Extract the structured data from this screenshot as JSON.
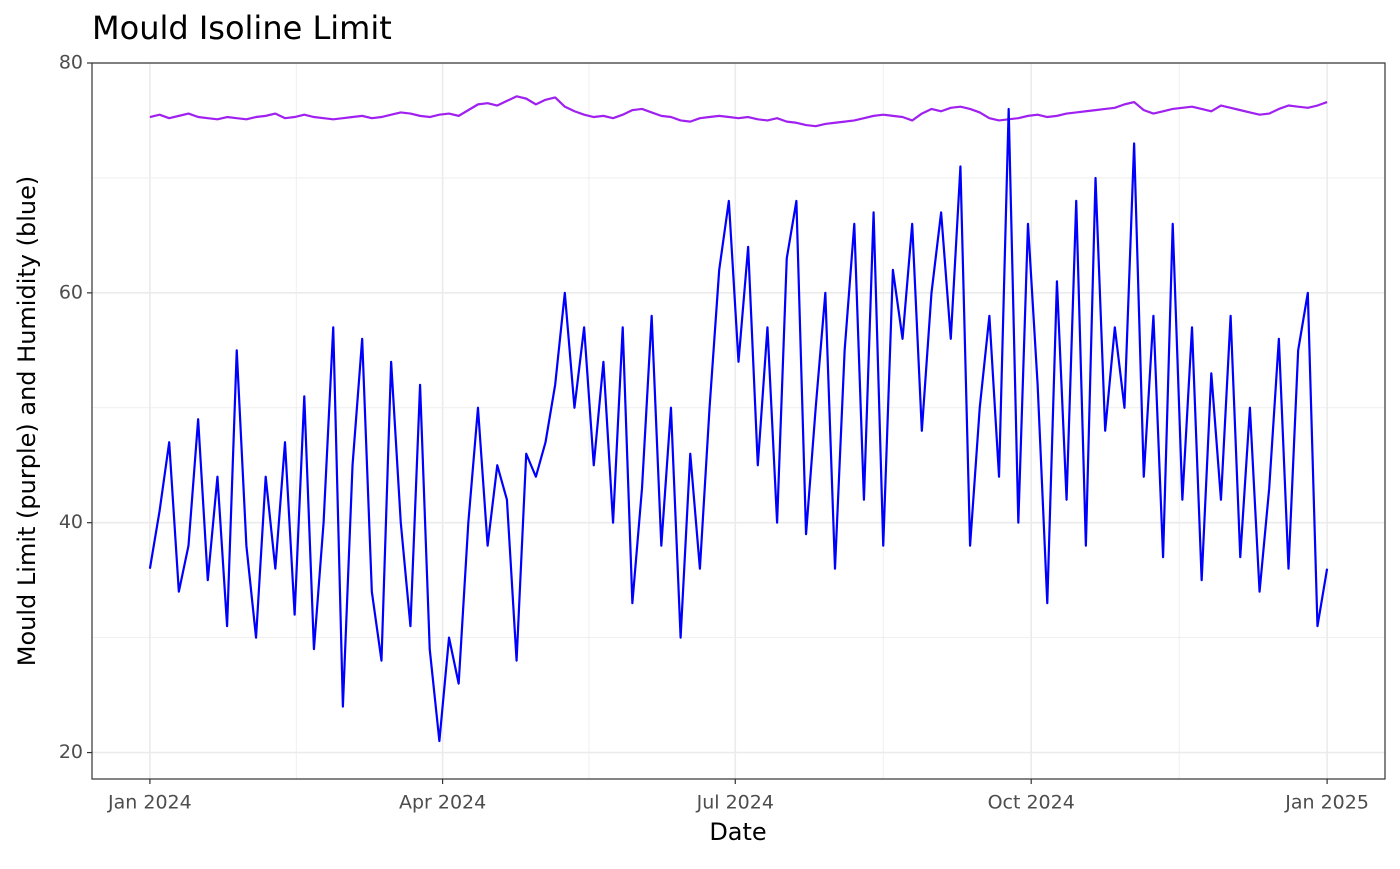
{
  "chart_data": {
    "type": "line",
    "title": "Mould Isoline Limit",
    "x_label": "Date",
    "y_label": "Mould Limit (purple) and Humidity (blue)",
    "x": [
      0,
      3,
      6,
      9,
      12,
      15,
      18,
      21,
      24,
      27,
      30,
      33,
      36,
      39,
      42,
      45,
      48,
      51,
      54,
      57,
      60,
      63,
      66,
      69,
      72,
      75,
      78,
      81,
      84,
      87,
      90,
      93,
      96,
      99,
      102,
      105,
      108,
      111,
      114,
      117,
      120,
      123,
      126,
      129,
      132,
      135,
      138,
      141,
      144,
      147,
      150,
      153,
      156,
      159,
      162,
      165,
      168,
      171,
      174,
      177,
      180,
      183,
      186,
      189,
      192,
      195,
      198,
      201,
      204,
      207,
      210,
      213,
      216,
      219,
      222,
      225,
      228,
      231,
      234,
      237,
      240,
      243,
      246,
      249,
      252,
      255,
      258,
      261,
      264,
      267,
      270,
      273,
      276,
      279,
      282,
      285,
      288,
      291,
      294,
      297,
      300,
      303,
      306,
      309,
      312,
      315,
      318,
      321,
      324,
      327,
      330,
      333,
      336,
      339,
      342,
      345,
      348,
      351,
      354,
      357,
      360,
      363,
      366
    ],
    "series": [
      {
        "name": "Mould Limit",
        "color": "#a020f0",
        "values": [
          75.3,
          75.5,
          75.2,
          75.4,
          75.6,
          75.3,
          75.2,
          75.1,
          75.3,
          75.2,
          75.1,
          75.3,
          75.4,
          75.6,
          75.2,
          75.3,
          75.5,
          75.3,
          75.2,
          75.1,
          75.2,
          75.3,
          75.4,
          75.2,
          75.3,
          75.5,
          75.7,
          75.6,
          75.4,
          75.3,
          75.5,
          75.6,
          75.4,
          75.9,
          76.4,
          76.5,
          76.3,
          76.7,
          77.1,
          76.9,
          76.4,
          76.8,
          77.0,
          76.2,
          75.8,
          75.5,
          75.3,
          75.4,
          75.2,
          75.5,
          75.9,
          76.0,
          75.7,
          75.4,
          75.3,
          75.0,
          74.9,
          75.2,
          75.3,
          75.4,
          75.3,
          75.2,
          75.3,
          75.1,
          75.0,
          75.2,
          74.9,
          74.8,
          74.6,
          74.5,
          74.7,
          74.8,
          74.9,
          75.0,
          75.2,
          75.4,
          75.5,
          75.4,
          75.3,
          75.0,
          75.6,
          76.0,
          75.8,
          76.1,
          76.2,
          76.0,
          75.7,
          75.2,
          75.0,
          75.1,
          75.2,
          75.4,
          75.5,
          75.3,
          75.4,
          75.6,
          75.7,
          75.8,
          75.9,
          76.0,
          76.1,
          76.4,
          76.6,
          75.9,
          75.6,
          75.8,
          76.0,
          76.1,
          76.2,
          76.0,
          75.8,
          76.3,
          76.1,
          75.9,
          75.7,
          75.5,
          75.6,
          76.0,
          76.3,
          76.2,
          76.1,
          76.3,
          76.6
        ]
      },
      {
        "name": "Humidity",
        "color": "#0000ff",
        "values": [
          36,
          41,
          47,
          34,
          38,
          49,
          35,
          44,
          31,
          55,
          38,
          30,
          44,
          36,
          47,
          32,
          51,
          29,
          40,
          57,
          24,
          45,
          56,
          34,
          28,
          54,
          40,
          31,
          52,
          29,
          21,
          30,
          26,
          40,
          50,
          38,
          45,
          42,
          28,
          46,
          44,
          47,
          52,
          60,
          50,
          57,
          45,
          54,
          40,
          57,
          33,
          43,
          58,
          38,
          50,
          30,
          46,
          36,
          50,
          62,
          68,
          54,
          64,
          45,
          57,
          40,
          63,
          68,
          39,
          50,
          60,
          36,
          55,
          66,
          42,
          67,
          38,
          62,
          56,
          66,
          48,
          60,
          67,
          56,
          71,
          38,
          50,
          58,
          44,
          76,
          40,
          66,
          52,
          33,
          61,
          42,
          68,
          38,
          70,
          48,
          57,
          50,
          73,
          44,
          58,
          37,
          66,
          42,
          57,
          35,
          53,
          42,
          58,
          37,
          50,
          34,
          43,
          56,
          36,
          55,
          60,
          31,
          36
        ]
      }
    ],
    "xlim": [
      -18,
      384
    ],
    "xticks": [
      {
        "value": 0,
        "label": "Jan 2024"
      },
      {
        "value": 91,
        "label": "Apr 2024"
      },
      {
        "value": 182,
        "label": "Jul 2024"
      },
      {
        "value": 274,
        "label": "Oct 2024"
      },
      {
        "value": 366,
        "label": "Jan 2025"
      }
    ],
    "x_minor_ticks": [
      45.5,
      136.5,
      228,
      320
    ],
    "ylim": [
      17.7,
      80
    ],
    "yticks": [
      20,
      40,
      60,
      80
    ],
    "y_minor_ticks": [
      30,
      50,
      70
    ],
    "grid": true
  }
}
